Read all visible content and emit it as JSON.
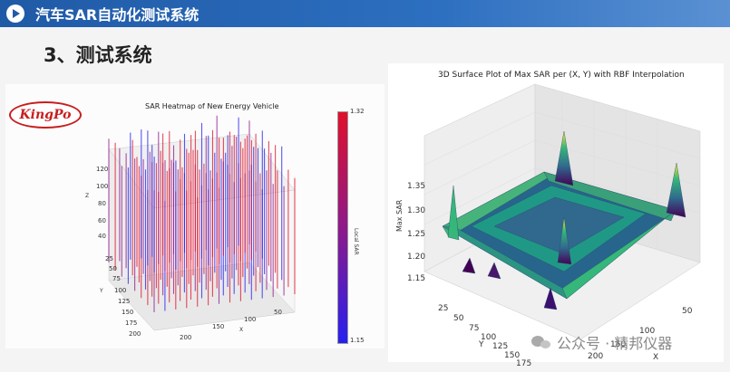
{
  "header": {
    "title": "汽车SAR自动化测试系统",
    "bar_color": "#1f5aa6"
  },
  "section": {
    "title": "3、测试系统"
  },
  "logo": {
    "text": "KingPo",
    "color": "#c81e1e"
  },
  "watermark": {
    "text": "公众号 · 精邦仪器"
  },
  "chart_data": [
    {
      "type": "heatmap",
      "title": "SAR Heatmap of New Energy Vehicle",
      "xlabel": "X",
      "ylabel": "Y",
      "zlabel": "Z",
      "colorbar_label": "Local SAR",
      "colorbar_min": "1.15",
      "colorbar_max": "1.32",
      "colorbar_colors": [
        "#2620f0",
        "#8e1a8a",
        "#e0102a"
      ],
      "x_ticks": [
        "200",
        "150",
        "100",
        "50"
      ],
      "y_ticks": [
        "25",
        "50",
        "75",
        "100",
        "125",
        "150",
        "175",
        "200"
      ],
      "z_ticks": [
        "120",
        "100",
        "80",
        "60",
        "40"
      ]
    },
    {
      "type": "area",
      "title": "3D Surface Plot of Max SAR per (X, Y) with RBF Interpolation",
      "xlabel": "X",
      "ylabel": "Y",
      "zlabel": "Max SAR",
      "z_ticks": [
        "1.35",
        "1.30",
        "1.25",
        "1.20",
        "1.15"
      ],
      "x_ticks": [
        "50",
        "100",
        "150",
        "200"
      ],
      "y_ticks": [
        "25",
        "50",
        "75",
        "100",
        "125",
        "150",
        "175"
      ],
      "zlim": [
        1.13,
        1.38
      ],
      "colormap": [
        "#440154",
        "#31688e",
        "#35b779",
        "#fde725"
      ]
    }
  ]
}
